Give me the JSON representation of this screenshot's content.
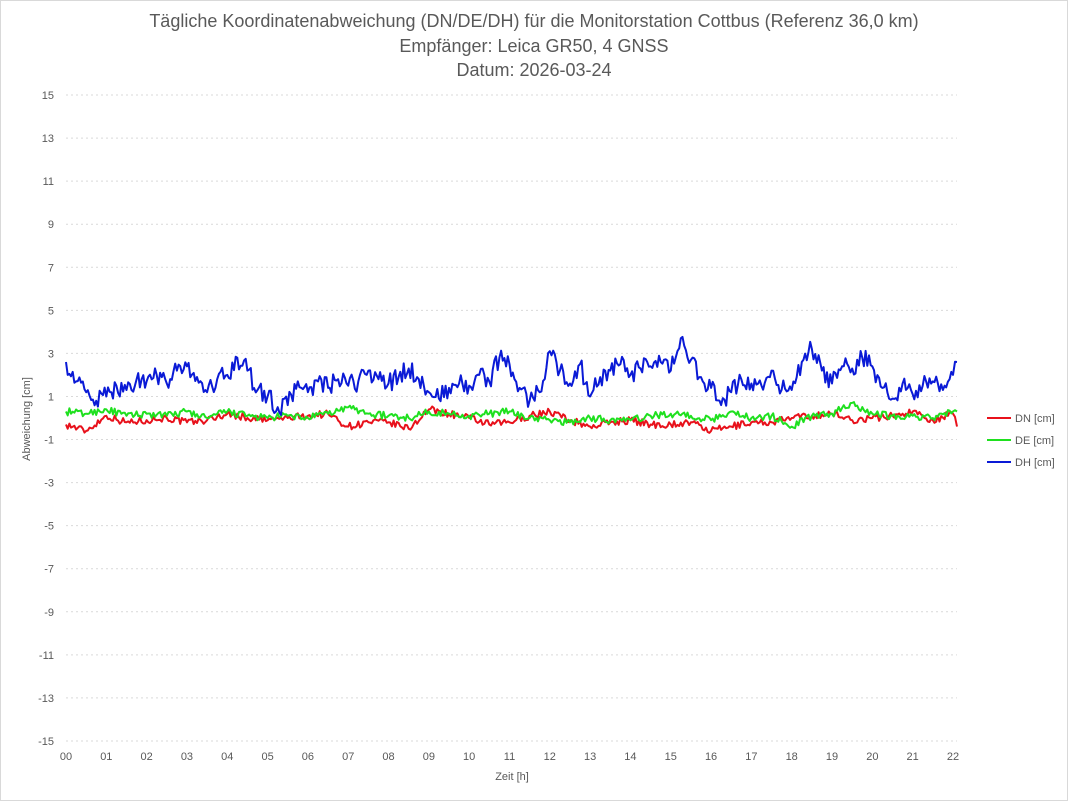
{
  "chart_data": {
    "type": "line",
    "title": [
      "Tägliche Koordinatenabweichung (DN/DE/DH) für die Monitorstation Cottbus (Referenz 36,0 km)",
      "Empfänger: Leica GR50, 4 GNSS",
      "Datum: 2026-03-24"
    ],
    "xlabel": "Zeit [h]",
    "ylabel": "Abweichung [cm]",
    "xlim": [
      0,
      22.1
    ],
    "ylim": [
      -15,
      15
    ],
    "x_ticks": [
      "00",
      "01",
      "02",
      "03",
      "04",
      "05",
      "06",
      "07",
      "08",
      "09",
      "10",
      "11",
      "12",
      "13",
      "14",
      "15",
      "16",
      "17",
      "18",
      "19",
      "20",
      "21",
      "22"
    ],
    "y_ticks": [
      "15",
      "13",
      "11",
      "9",
      "7",
      "5",
      "3",
      "1",
      "-1",
      "-3",
      "-5",
      "-7",
      "-9",
      "-11",
      "-13",
      "-15"
    ],
    "legend_position": "right",
    "grid": true,
    "series": [
      {
        "name": "DN [cm]",
        "color": "#e8111b",
        "x": [
          0,
          0.5,
          1,
          1.5,
          2,
          2.5,
          3,
          3.5,
          4,
          4.5,
          5,
          5.5,
          6,
          6.5,
          7,
          7.5,
          8,
          8.5,
          9,
          9.5,
          10,
          10.5,
          11,
          11.5,
          12,
          12.5,
          13,
          13.5,
          14,
          14.5,
          15,
          15.5,
          16,
          16.5,
          17,
          17.5,
          18,
          18.5,
          19,
          19.5,
          20,
          20.5,
          21,
          21.5,
          22,
          22.1
        ],
        "values": [
          -0.3,
          -0.6,
          0.1,
          -0.2,
          -0.1,
          0,
          -0.2,
          -0.1,
          0.2,
          0,
          -0.1,
          0,
          0.1,
          0.2,
          -0.4,
          -0.2,
          -0.2,
          -0.5,
          0.4,
          0.2,
          0,
          -0.3,
          -0.2,
          0.1,
          0.3,
          -0.1,
          -0.4,
          -0.2,
          -0.1,
          -0.3,
          -0.3,
          -0.2,
          -0.6,
          -0.4,
          -0.2,
          -0.2,
          0,
          0.1,
          0.2,
          -0.1,
          0,
          0.1,
          0.3,
          -0.1,
          0.2,
          -0.4
        ]
      },
      {
        "name": "DE [cm]",
        "color": "#1fe01f",
        "x": [
          0,
          0.5,
          1,
          1.5,
          2,
          2.5,
          3,
          3.5,
          4,
          4.5,
          5,
          5.5,
          6,
          6.5,
          7,
          7.5,
          8,
          8.5,
          9,
          9.5,
          10,
          10.5,
          11,
          11.5,
          12,
          12.5,
          13,
          13.5,
          14,
          14.5,
          15,
          15.5,
          16,
          16.5,
          17,
          17.5,
          18,
          18.5,
          19,
          19.5,
          20,
          20.5,
          21,
          21.5,
          22,
          22.1
        ],
        "values": [
          0.3,
          0.2,
          0.4,
          0.1,
          0.2,
          0.1,
          0.3,
          0,
          0.3,
          0.1,
          0,
          0.1,
          0,
          0.2,
          0.5,
          0.2,
          0.1,
          0,
          0.3,
          0.2,
          0.1,
          0.2,
          0.3,
          0,
          -0.1,
          -0.2,
          0,
          -0.1,
          -0.1,
          0.1,
          0.2,
          0.1,
          -0.1,
          0.3,
          0,
          0.1,
          -0.4,
          0.1,
          0.2,
          0.7,
          0.2,
          0.1,
          0.1,
          0,
          0.3,
          0.3
        ]
      },
      {
        "name": "DH [cm]",
        "color": "#0a1ad6",
        "x": [
          0,
          0.25,
          0.5,
          0.75,
          1,
          1.25,
          1.5,
          1.75,
          2,
          2.25,
          2.5,
          2.75,
          3,
          3.25,
          3.5,
          3.75,
          4,
          4.25,
          4.5,
          4.75,
          5,
          5.25,
          5.5,
          5.75,
          6,
          6.25,
          6.5,
          6.75,
          7,
          7.25,
          7.5,
          7.75,
          8,
          8.25,
          8.5,
          8.75,
          9,
          9.25,
          9.5,
          9.75,
          10,
          10.25,
          10.5,
          10.75,
          11,
          11.25,
          11.5,
          11.75,
          12,
          12.25,
          12.5,
          12.75,
          13,
          13.25,
          13.5,
          13.75,
          14,
          14.25,
          14.5,
          14.75,
          15,
          15.25,
          15.5,
          15.75,
          16,
          16.25,
          16.5,
          16.75,
          17,
          17.25,
          17.5,
          17.75,
          18,
          18.25,
          18.5,
          18.75,
          19,
          19.25,
          19.5,
          19.75,
          20,
          20.25,
          20.5,
          20.75,
          21,
          21.25,
          21.5,
          21.75,
          22,
          22.1
        ],
        "values": [
          2.6,
          1.7,
          1.2,
          0.8,
          1.0,
          1.5,
          1.3,
          1.8,
          1.7,
          2.0,
          1.6,
          2.2,
          2.4,
          1.9,
          1.2,
          1.8,
          2.0,
          2.8,
          2.2,
          1.3,
          1.0,
          0.5,
          0.6,
          1.7,
          1.2,
          1.7,
          1.4,
          1.8,
          1.5,
          1.7,
          2.2,
          1.8,
          1.6,
          1.9,
          2.3,
          1.8,
          1.2,
          0.9,
          1.4,
          1.6,
          1.5,
          2.0,
          1.7,
          2.8,
          2.5,
          1.4,
          0.8,
          1.2,
          3.1,
          2.2,
          1.6,
          2.5,
          1.0,
          1.9,
          2.2,
          2.5,
          2.0,
          2.3,
          2.4,
          2.6,
          2.2,
          3.7,
          2.7,
          1.9,
          1.4,
          0.6,
          1.2,
          1.8,
          1.6,
          1.5,
          2.2,
          1.3,
          1.3,
          2.6,
          3.2,
          2.2,
          1.6,
          2.4,
          2.3,
          2.8,
          2.4,
          1.4,
          0.9,
          1.6,
          1.1,
          1.5,
          1.7,
          1.3,
          2.0,
          2.6
        ]
      }
    ]
  }
}
